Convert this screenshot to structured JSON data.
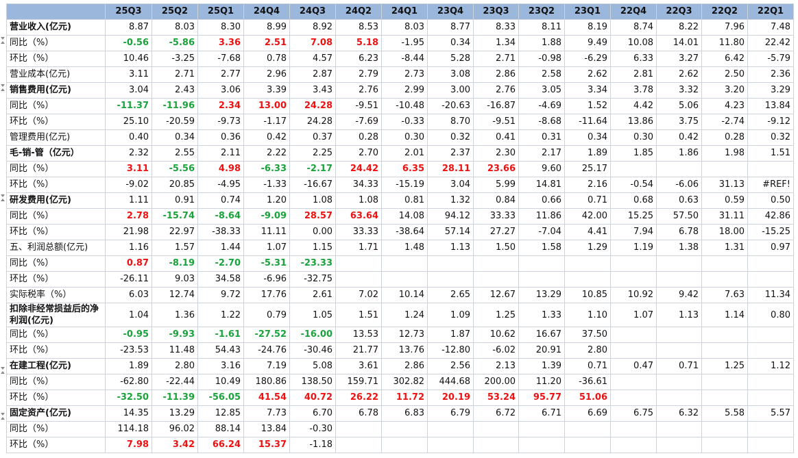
{
  "header": {
    "corner": "",
    "columns": [
      "25Q3",
      "25Q2",
      "25Q1",
      "24Q4",
      "24Q3",
      "24Q2",
      "24Q1",
      "23Q4",
      "23Q3",
      "23Q2",
      "23Q1",
      "22Q4",
      "22Q3",
      "22Q2",
      "22Q1"
    ]
  },
  "rows": [
    {
      "label": "营业收入(亿元)",
      "bold": true,
      "values": [
        "8.87",
        "8.03",
        "8.30",
        "8.99",
        "8.92",
        "8.53",
        "8.03",
        "8.77",
        "8.33",
        "8.11",
        "8.19",
        "8.74",
        "8.22",
        "7.96",
        "7.48"
      ],
      "colors": [
        "",
        "",
        "",
        "",
        "",
        "",
        "",
        "",
        "",
        "",
        "",
        "",
        "",
        "",
        ""
      ]
    },
    {
      "label": "同比（%）",
      "bold": false,
      "values": [
        "-0.56",
        "-5.86",
        "3.36",
        "2.51",
        "7.08",
        "5.18",
        "-1.95",
        "0.34",
        "1.34",
        "1.88",
        "9.49",
        "10.08",
        "14.01",
        "11.80",
        "22.42"
      ],
      "colors": [
        "green",
        "green",
        "red",
        "red",
        "red",
        "red",
        "",
        "",
        "",
        "",
        "",
        "",
        "",
        "",
        ""
      ]
    },
    {
      "label": "环比（%）",
      "bold": false,
      "values": [
        "10.46",
        "-3.25",
        "-7.68",
        "0.78",
        "4.57",
        "6.23",
        "-8.44",
        "5.28",
        "2.71",
        "-0.98",
        "-6.29",
        "6.33",
        "3.27",
        "6.42",
        "-5.79"
      ],
      "colors": [
        "",
        "",
        "",
        "",
        "",
        "",
        "",
        "",
        "",
        "",
        "",
        "",
        "",
        "",
        ""
      ]
    },
    {
      "label": "营业成本(亿元)",
      "bold": false,
      "values": [
        "3.11",
        "2.71",
        "2.77",
        "2.96",
        "2.87",
        "2.79",
        "2.73",
        "3.08",
        "2.86",
        "2.58",
        "2.62",
        "2.81",
        "2.62",
        "2.50",
        "2.36"
      ],
      "colors": [
        "",
        "",
        "",
        "",
        "",
        "",
        "",
        "",
        "",
        "",
        "",
        "",
        "",
        "",
        ""
      ]
    },
    {
      "label": "销售费用(亿元)",
      "bold": true,
      "values": [
        "3.04",
        "2.43",
        "3.06",
        "3.39",
        "3.43",
        "2.76",
        "2.99",
        "3.00",
        "2.76",
        "3.05",
        "3.34",
        "3.78",
        "3.32",
        "3.20",
        "3.29"
      ],
      "colors": [
        "",
        "",
        "",
        "",
        "",
        "",
        "",
        "",
        "",
        "",
        "",
        "",
        "",
        "",
        ""
      ]
    },
    {
      "label": "同比（%）",
      "bold": false,
      "values": [
        "-11.37",
        "-11.96",
        "2.34",
        "13.00",
        "24.28",
        "-9.51",
        "-10.48",
        "-20.63",
        "-16.87",
        "-4.69",
        "1.52",
        "4.42",
        "5.06",
        "4.23",
        "13.84"
      ],
      "colors": [
        "green",
        "green",
        "red",
        "red",
        "red",
        "",
        "",
        "",
        "",
        "",
        "",
        "",
        "",
        "",
        ""
      ]
    },
    {
      "label": "环比（%）",
      "bold": false,
      "values": [
        "25.10",
        "-20.59",
        "-9.73",
        "-1.17",
        "24.28",
        "-7.69",
        "-0.33",
        "8.70",
        "-9.51",
        "-8.68",
        "-11.64",
        "13.86",
        "3.75",
        "-2.74",
        "-9.12"
      ],
      "colors": [
        "",
        "",
        "",
        "",
        "",
        "",
        "",
        "",
        "",
        "",
        "",
        "",
        "",
        "",
        ""
      ]
    },
    {
      "label": "管理费用(亿元)",
      "bold": false,
      "values": [
        "0.40",
        "0.34",
        "0.36",
        "0.42",
        "0.37",
        "0.28",
        "0.30",
        "0.32",
        "0.41",
        "0.31",
        "0.34",
        "0.30",
        "0.42",
        "0.28",
        "0.32"
      ],
      "colors": [
        "",
        "",
        "",
        "",
        "",
        "",
        "",
        "",
        "",
        "",
        "",
        "",
        "",
        "",
        ""
      ]
    },
    {
      "label": "毛-销-管（亿元）",
      "bold": true,
      "values": [
        "2.32",
        "2.55",
        "2.11",
        "2.22",
        "2.25",
        "2.70",
        "2.01",
        "2.37",
        "2.30",
        "2.17",
        "1.89",
        "1.85",
        "1.86",
        "1.98",
        "1.51"
      ],
      "colors": [
        "",
        "",
        "",
        "",
        "",
        "",
        "",
        "",
        "",
        "",
        "",
        "",
        "",
        "",
        ""
      ]
    },
    {
      "label": "同比（%）",
      "bold": false,
      "values": [
        "3.11",
        "-5.56",
        "4.98",
        "-6.33",
        "-2.17",
        "24.42",
        "6.35",
        "28.11",
        "23.66",
        "9.60",
        "25.17",
        "",
        "",
        "",
        ""
      ],
      "colors": [
        "red",
        "green",
        "red",
        "green",
        "green",
        "red",
        "red",
        "red",
        "red",
        "",
        "",
        "",
        "",
        "",
        ""
      ]
    },
    {
      "label": "环比（%）",
      "bold": false,
      "values": [
        "-9.02",
        "20.85",
        "-4.95",
        "-1.33",
        "-16.67",
        "34.33",
        "-15.19",
        "3.04",
        "5.99",
        "14.81",
        "2.16",
        "-0.54",
        "-6.06",
        "31.13",
        "#REF!"
      ],
      "colors": [
        "",
        "",
        "",
        "",
        "",
        "",
        "",
        "",
        "",
        "",
        "",
        "",
        "",
        "",
        ""
      ]
    },
    {
      "label": "研发费用(亿元)",
      "bold": true,
      "values": [
        "1.11",
        "0.91",
        "0.74",
        "1.20",
        "1.08",
        "1.08",
        "0.81",
        "1.32",
        "0.84",
        "0.66",
        "0.71",
        "0.68",
        "0.63",
        "0.59",
        "0.50"
      ],
      "colors": [
        "",
        "",
        "",
        "",
        "",
        "",
        "",
        "",
        "",
        "",
        "",
        "",
        "",
        "",
        ""
      ]
    },
    {
      "label": "同比（%）",
      "bold": false,
      "values": [
        "2.78",
        "-15.74",
        "-8.64",
        "-9.09",
        "28.57",
        "63.64",
        "14.08",
        "94.12",
        "33.33",
        "11.86",
        "42.00",
        "15.25",
        "57.50",
        "31.11",
        "42.86"
      ],
      "colors": [
        "red",
        "green",
        "green",
        "green",
        "red",
        "red",
        "",
        "",
        "",
        "",
        "",
        "",
        "",
        "",
        ""
      ]
    },
    {
      "label": "环比（%）",
      "bold": false,
      "values": [
        "21.98",
        "22.97",
        "-38.33",
        "11.11",
        "0.00",
        "33.33",
        "-38.64",
        "57.14",
        "27.27",
        "-7.04",
        "4.41",
        "7.94",
        "6.78",
        "18.00",
        "-15.25"
      ],
      "colors": [
        "",
        "",
        "",
        "",
        "",
        "",
        "",
        "",
        "",
        "",
        "",
        "",
        "",
        "",
        ""
      ]
    },
    {
      "label": "五、利润总额(亿元)",
      "bold": false,
      "values": [
        "1.16",
        "1.57",
        "1.44",
        "1.07",
        "1.15",
        "1.71",
        "1.48",
        "1.13",
        "1.50",
        "1.58",
        "1.29",
        "1.19",
        "1.38",
        "1.31",
        "0.97"
      ],
      "colors": [
        "",
        "",
        "",
        "",
        "",
        "",
        "",
        "",
        "",
        "",
        "",
        "",
        "",
        "",
        ""
      ]
    },
    {
      "label": "同比（%）",
      "bold": false,
      "values": [
        "0.87",
        "-8.19",
        "-2.70",
        "-5.31",
        "-23.33",
        "",
        "",
        "",
        "",
        "",
        "",
        "",
        "",
        "",
        ""
      ],
      "colors": [
        "red",
        "green",
        "green",
        "green",
        "green",
        "",
        "",
        "",
        "",
        "",
        "",
        "",
        "",
        "",
        ""
      ]
    },
    {
      "label": "环比（%）",
      "bold": false,
      "values": [
        "-26.11",
        "9.03",
        "34.58",
        "-6.96",
        "-32.75",
        "",
        "",
        "",
        "",
        "",
        "",
        "",
        "",
        "",
        ""
      ],
      "colors": [
        "",
        "",
        "",
        "",
        "",
        "",
        "",
        "",
        "",
        "",
        "",
        "",
        "",
        "",
        ""
      ]
    },
    {
      "label": "实际税率（%）",
      "bold": false,
      "values": [
        "6.03",
        "12.74",
        "9.72",
        "17.76",
        "2.61",
        "7.02",
        "10.14",
        "2.65",
        "12.67",
        "13.29",
        "10.85",
        "10.92",
        "9.42",
        "7.63",
        "11.34"
      ],
      "colors": [
        "",
        "",
        "",
        "",
        "",
        "",
        "",
        "",
        "",
        "",
        "",
        "",
        "",
        "",
        ""
      ]
    },
    {
      "label": "扣除非经常损益后的净利润(亿元)",
      "bold": true,
      "tall": true,
      "values": [
        "1.04",
        "1.36",
        "1.22",
        "0.79",
        "1.05",
        "1.51",
        "1.24",
        "1.09",
        "1.25",
        "1.33",
        "1.10",
        "1.07",
        "1.13",
        "1.14",
        "0.80"
      ],
      "colors": [
        "",
        "",
        "",
        "",
        "",
        "",
        "",
        "",
        "",
        "",
        "",
        "",
        "",
        "",
        ""
      ]
    },
    {
      "label": "同比（%）",
      "bold": false,
      "values": [
        "-0.95",
        "-9.93",
        "-1.61",
        "-27.52",
        "-16.00",
        "13.53",
        "12.73",
        "1.87",
        "10.62",
        "16.67",
        "37.50",
        "",
        "",
        "",
        ""
      ],
      "colors": [
        "green",
        "green",
        "green",
        "green",
        "green",
        "",
        "",
        "",
        "",
        "",
        "",
        "",
        "",
        "",
        ""
      ]
    },
    {
      "label": "环比（%）",
      "bold": false,
      "values": [
        "-23.53",
        "11.48",
        "54.43",
        "-24.76",
        "-30.46",
        "21.77",
        "13.76",
        "-12.80",
        "-6.02",
        "20.91",
        "2.80",
        "",
        "",
        "",
        ""
      ],
      "colors": [
        "",
        "",
        "",
        "",
        "",
        "",
        "",
        "",
        "",
        "",
        "",
        "",
        "",
        "",
        ""
      ]
    },
    {
      "label": "在建工程(亿元)",
      "bold": true,
      "values": [
        "1.89",
        "2.80",
        "3.16",
        "7.19",
        "5.08",
        "3.61",
        "2.86",
        "2.56",
        "2.13",
        "1.39",
        "0.71",
        "0.47",
        "0.71",
        "1.25",
        "1.12"
      ],
      "colors": [
        "",
        "",
        "",
        "",
        "",
        "",
        "",
        "",
        "",
        "",
        "",
        "",
        "",
        "",
        ""
      ]
    },
    {
      "label": "同比（%）",
      "bold": false,
      "values": [
        "-62.80",
        "-22.44",
        "10.49",
        "180.86",
        "138.50",
        "159.71",
        "302.82",
        "444.68",
        "200.00",
        "11.20",
        "-36.61",
        "",
        "",
        "",
        ""
      ],
      "colors": [
        "",
        "",
        "",
        "",
        "",
        "",
        "",
        "",
        "",
        "",
        "",
        "",
        "",
        "",
        ""
      ]
    },
    {
      "label": "环比（%）",
      "bold": false,
      "values": [
        "-32.50",
        "-11.39",
        "-56.05",
        "41.54",
        "40.72",
        "26.22",
        "11.72",
        "20.19",
        "53.24",
        "95.77",
        "51.06",
        "",
        "",
        "",
        ""
      ],
      "colors": [
        "green",
        "green",
        "green",
        "red",
        "red",
        "red",
        "red",
        "red",
        "red",
        "red",
        "red",
        "",
        "",
        "",
        ""
      ]
    },
    {
      "label": "固定资产(亿元)",
      "bold": true,
      "values": [
        "14.35",
        "13.29",
        "12.85",
        "7.73",
        "6.70",
        "6.78",
        "6.83",
        "6.79",
        "6.72",
        "6.71",
        "6.69",
        "6.75",
        "6.32",
        "5.58",
        "5.57"
      ],
      "colors": [
        "",
        "",
        "",
        "",
        "",
        "",
        "",
        "",
        "",
        "",
        "",
        "",
        "",
        "",
        ""
      ]
    },
    {
      "label": "同比（%）",
      "bold": false,
      "values": [
        "114.18",
        "96.02",
        "88.14",
        "13.84",
        "-0.30",
        "",
        "",
        "",
        "",
        "",
        "",
        "",
        "",
        "",
        ""
      ],
      "colors": [
        "",
        "",
        "",
        "",
        "",
        "",
        "",
        "",
        "",
        "",
        "",
        "",
        "",
        "",
        ""
      ]
    },
    {
      "label": "环比（%）",
      "bold": false,
      "values": [
        "7.98",
        "3.42",
        "66.24",
        "15.37",
        "-1.18",
        "",
        "",
        "",
        "",
        "",
        "",
        "",
        "",
        "",
        ""
      ],
      "colors": [
        "red",
        "red",
        "red",
        "red",
        "",
        "",
        "",
        "",
        "",
        "",
        "",
        "",
        "",
        "",
        ""
      ]
    }
  ]
}
